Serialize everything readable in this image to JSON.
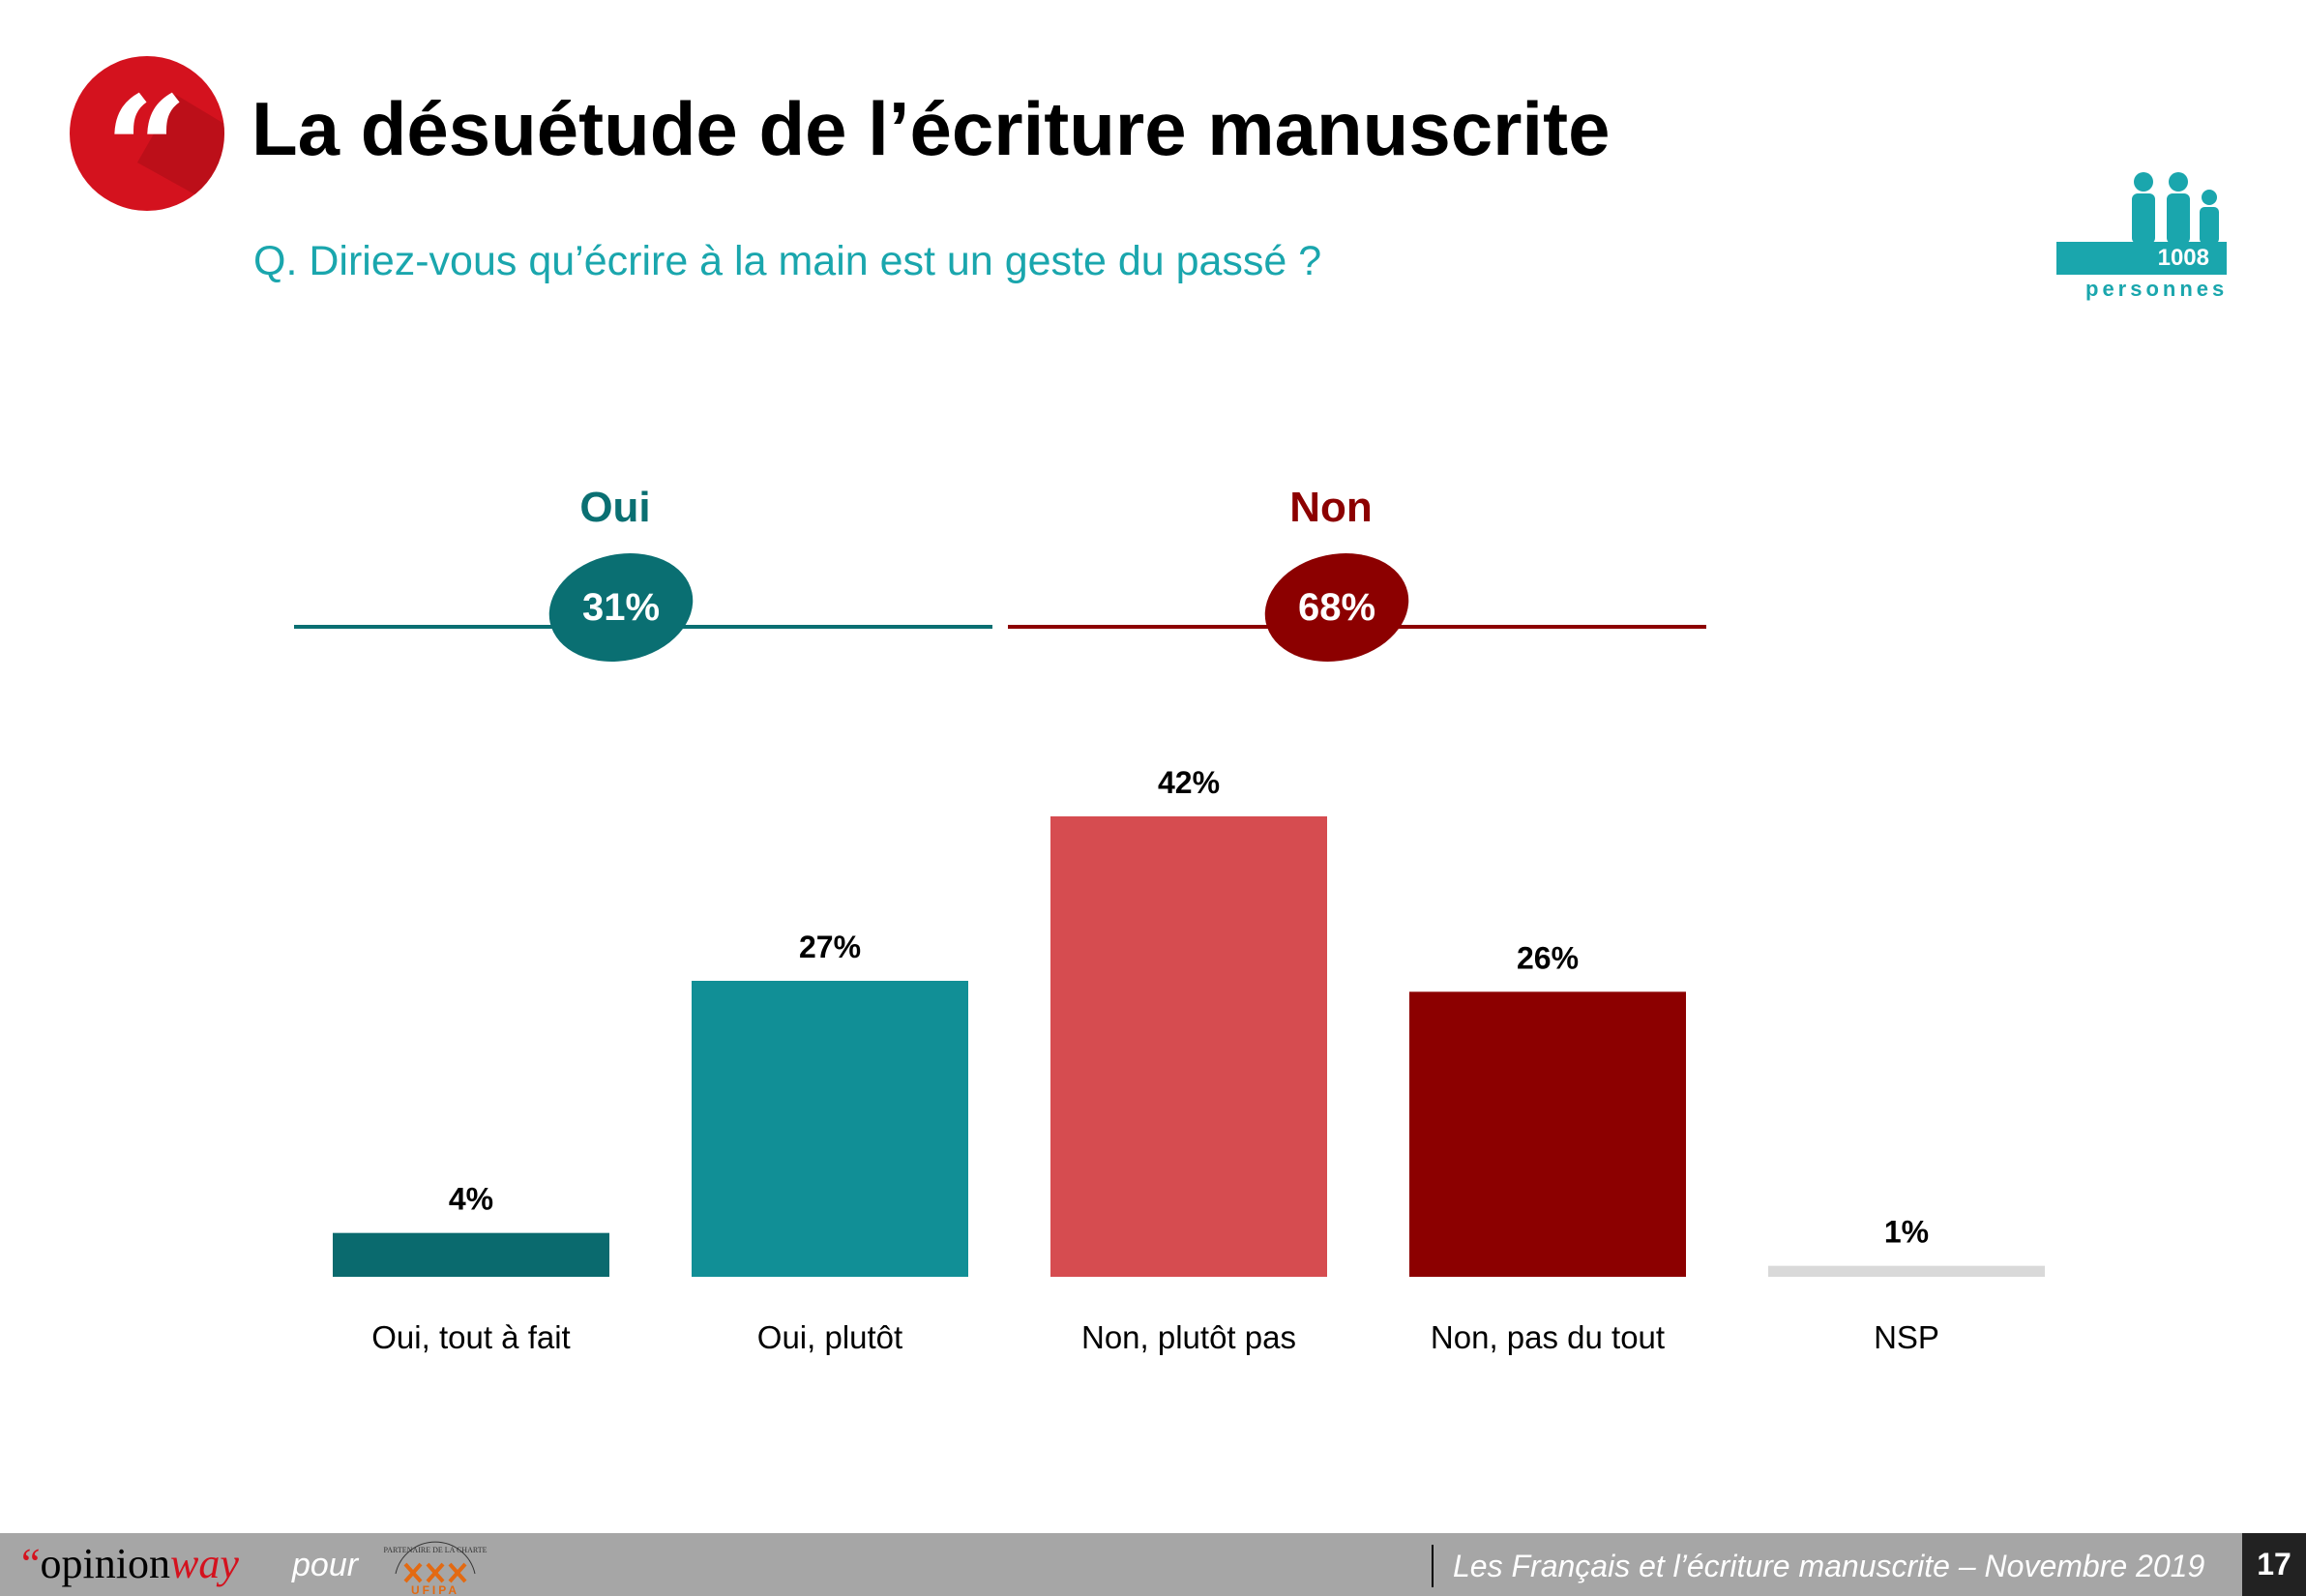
{
  "header": {
    "title": "La désuétude de l’écriture manuscrite",
    "question": "Q. Diriez-vous qu’écrire à la main est un geste du passé ?",
    "quote_glyph": "“"
  },
  "sample": {
    "count": "1008",
    "label": "personnes"
  },
  "groups": [
    {
      "label": "Oui",
      "value_label": "31%",
      "color": "#0a6f72"
    },
    {
      "label": "Non",
      "value_label": "68%",
      "color": "#8c0000"
    }
  ],
  "chart_data": {
    "type": "bar",
    "categories": [
      "Oui, tout à fait",
      "Oui, plutôt",
      "Non, plutôt pas",
      "Non, pas du tout",
      "NSP"
    ],
    "values": [
      4,
      27,
      42,
      26,
      1
    ],
    "value_labels": [
      "4%",
      "27%",
      "42%",
      "26%",
      "1%"
    ],
    "colors": [
      "#0a6a6e",
      "#118f96",
      "#d64c50",
      "#8c0000",
      "#d9d9d9"
    ],
    "ylim": [
      0,
      42
    ],
    "grid": false
  },
  "footer": {
    "brand_quote": "“",
    "brand_main": "opinion",
    "brand_accent": "way",
    "pour": "pour",
    "partner_text": "PARTENAIRE DE LA CHARTE",
    "partner_name": "UFIPA",
    "report": "Les Français et l’écriture manuscrite – Novembre 2019",
    "page": "17"
  }
}
